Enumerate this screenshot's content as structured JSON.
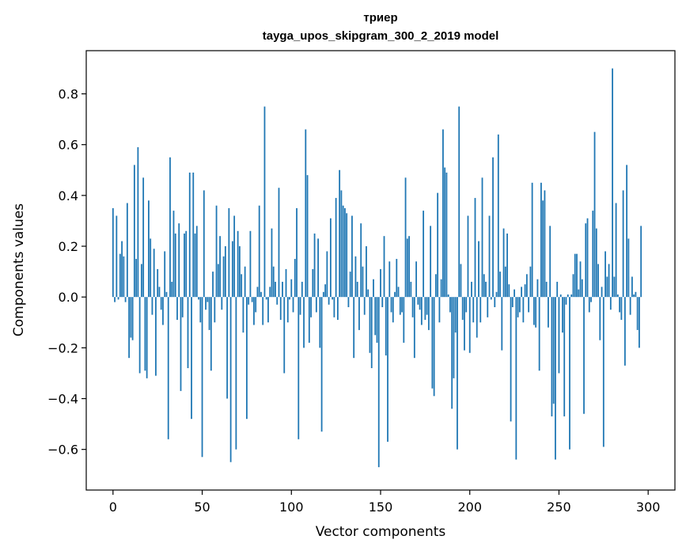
{
  "chart_data": {
    "type": "bar",
    "title_line1": "триер",
    "title_line2": "tayga_upos_skipgram_300_2_2019 model",
    "xlabel": "Vector components",
    "ylabel": "Components values",
    "xlim": [
      -15,
      315
    ],
    "ylim": [
      -0.76,
      0.97
    ],
    "xticks": [
      0,
      50,
      100,
      150,
      200,
      250,
      300
    ],
    "xtick_labels": [
      "0",
      "50",
      "100",
      "150",
      "200",
      "250",
      "300"
    ],
    "yticks": [
      -0.6,
      -0.4,
      -0.2,
      0.0,
      0.2,
      0.4,
      0.6,
      0.8
    ],
    "ytick_labels": [
      "−0.6",
      "−0.4",
      "−0.2",
      "0.0",
      "0.2",
      "0.4",
      "0.6",
      "0.8"
    ],
    "bar_color": "#1f77b4",
    "values": [
      0.35,
      -0.02,
      0.32,
      -0.01,
      0.17,
      0.22,
      0.16,
      -0.02,
      0.37,
      -0.24,
      -0.16,
      -0.17,
      0.52,
      0.15,
      0.59,
      -0.3,
      0.13,
      0.47,
      -0.29,
      -0.32,
      0.38,
      0.23,
      -0.07,
      0.19,
      -0.31,
      0.11,
      0.04,
      -0.05,
      -0.11,
      0.18,
      0.02,
      -0.56,
      0.55,
      0.06,
      0.34,
      0.25,
      -0.09,
      0.29,
      -0.37,
      -0.08,
      0.25,
      0.26,
      -0.28,
      0.49,
      -0.48,
      0.49,
      0.25,
      0.28,
      -0.01,
      -0.1,
      -0.63,
      0.42,
      -0.05,
      -0.02,
      -0.13,
      -0.29,
      0.1,
      -0.1,
      0.36,
      0.13,
      0.24,
      -0.05,
      0.16,
      0.2,
      -0.4,
      0.35,
      -0.65,
      0.22,
      0.32,
      -0.6,
      0.26,
      0.2,
      0.09,
      -0.14,
      0.12,
      -0.48,
      -0.03,
      0.26,
      -0.02,
      -0.11,
      -0.06,
      0.04,
      0.36,
      0.02,
      -0.11,
      0.75,
      -0.01,
      -0.1,
      0.04,
      0.27,
      0.12,
      0.06,
      -0.03,
      0.43,
      -0.09,
      0.06,
      -0.3,
      0.11,
      -0.1,
      -0.01,
      0.07,
      -0.06,
      0.15,
      0.35,
      -0.56,
      -0.07,
      0.06,
      -0.2,
      0.66,
      0.48,
      -0.18,
      -0.08,
      0.11,
      0.25,
      -0.06,
      0.23,
      -0.2,
      -0.53,
      0.02,
      0.05,
      0.18,
      -0.03,
      0.31,
      -0.01,
      -0.08,
      0.39,
      -0.09,
      0.5,
      0.42,
      0.36,
      0.35,
      0.33,
      -0.04,
      0.1,
      0.32,
      -0.24,
      0.16,
      0.06,
      -0.13,
      0.29,
      0.12,
      -0.07,
      0.2,
      0.03,
      -0.22,
      -0.28,
      0.07,
      -0.15,
      -0.18,
      -0.67,
      0.11,
      -0.04,
      0.24,
      -0.23,
      -0.57,
      0.14,
      -0.06,
      -0.1,
      0.02,
      0.15,
      0.04,
      -0.07,
      -0.06,
      -0.18,
      0.47,
      0.23,
      0.24,
      0.06,
      -0.08,
      -0.24,
      0.14,
      -0.03,
      -0.05,
      -0.11,
      0.34,
      -0.09,
      -0.07,
      -0.13,
      0.28,
      -0.36,
      -0.39,
      0.09,
      0.41,
      -0.1,
      0.07,
      0.66,
      0.51,
      0.49,
      0.01,
      -0.06,
      -0.44,
      -0.32,
      -0.14,
      -0.6,
      0.75,
      0.13,
      -0.09,
      -0.21,
      -0.06,
      0.32,
      -0.22,
      0.06,
      -0.1,
      0.39,
      -0.16,
      0.22,
      -0.1,
      0.47,
      0.09,
      0.06,
      -0.08,
      0.32,
      -0.01,
      0.55,
      -0.04,
      0.02,
      0.64,
      0.1,
      -0.21,
      0.27,
      0.12,
      0.25,
      0.05,
      -0.49,
      -0.04,
      0.03,
      -0.64,
      -0.08,
      -0.06,
      0.04,
      -0.1,
      0.05,
      0.09,
      -0.06,
      0.12,
      0.45,
      -0.11,
      -0.12,
      0.07,
      -0.29,
      0.45,
      0.38,
      0.42,
      0.06,
      -0.12,
      0.28,
      -0.47,
      -0.42,
      -0.64,
      0.06,
      -0.3,
      0.01,
      -0.14,
      -0.47,
      -0.03,
      0.01,
      -0.6,
      0.01,
      0.09,
      0.17,
      0.17,
      0.03,
      0.14,
      0.07,
      -0.46,
      0.29,
      0.31,
      -0.06,
      -0.02,
      0.34,
      0.65,
      0.27,
      0.13,
      -0.17,
      0.04,
      -0.59,
      0.18,
      0.08,
      0.13,
      -0.05,
      0.9,
      0.08,
      0.37,
      0.01,
      -0.06,
      -0.09,
      0.42,
      -0.27,
      0.52,
      0.23,
      -0.07,
      0.08,
      0.01,
      0.02,
      -0.13,
      -0.2,
      0.28
    ]
  }
}
